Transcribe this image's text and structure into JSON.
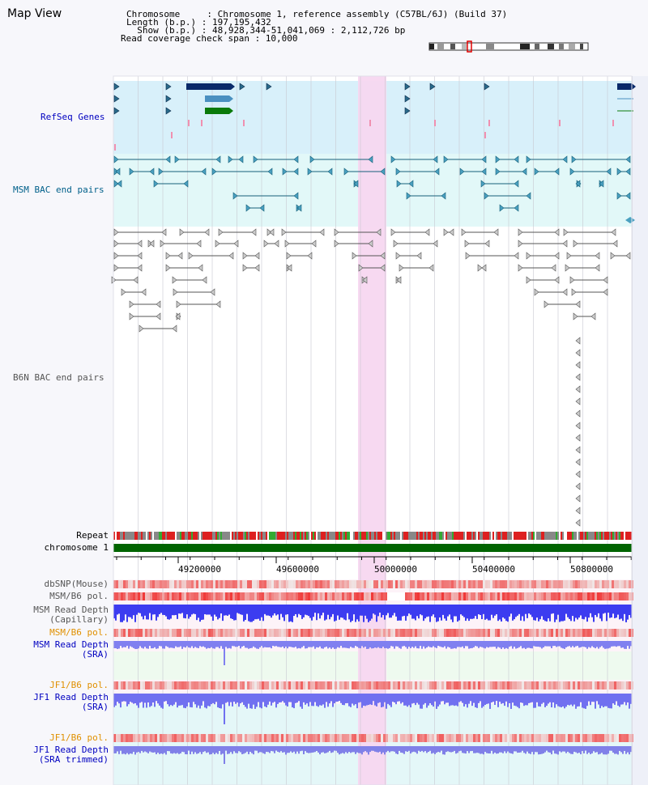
{
  "title": "Map View",
  "info": {
    "chromosome": "Chromosome     : Chromosome 1, reference assembly (C57BL/6J) (Build 37)",
    "length": "Length (b.p.) : 197,195,432",
    "show": "  Show (b.p.) : 48,928,344-51,041,069 : 2,112,726 bp",
    "coverage": "Read coverage check span : 10,000"
  },
  "tracks": {
    "refseq": "RefSeq Genes",
    "msm_bac": "MSM BAC end pairs",
    "b6n_bac": "B6N BAC end pairs",
    "repeat": "Repeat",
    "chromosome": "chromosome 1",
    "dbsnp": "dbSNP(Mouse)",
    "msm_b6_pol_1": "MSM/B6 pol.",
    "msm_depth_cap_1": "MSM Read Depth",
    "msm_depth_cap_2": "(Capillary)",
    "msm_b6_pol_2": "MSM/B6 pol.",
    "msm_depth_sra_1": "MSM Read Depth",
    "msm_depth_sra_2": "(SRA)",
    "jf1_b6_pol_1": "JF1/B6 pol.",
    "jf1_depth_sra_1": "JF1 Read Depth",
    "jf1_depth_sra_2": "(SRA)",
    "jf1_b6_pol_2": "JF1/B6 pol.",
    "jf1_depth_trim_1": "JF1 Read Depth",
    "jf1_depth_trim_2": "(SRA trimmed)"
  },
  "axis_ticks": [
    "49200000",
    "49600000",
    "50000000",
    "50400000",
    "50800000"
  ],
  "colors": {
    "refseq_bg": "#d8f0fa",
    "msm_bg": "#e2f8f8",
    "highlight": "#f7d7f0",
    "label_blue": "#0000c0",
    "label_teal": "#00608a",
    "label_gray": "#555555",
    "label_orange": "#e09000",
    "chromosome_bar": "#006400",
    "depth_blue": "#3c3cf0"
  }
}
